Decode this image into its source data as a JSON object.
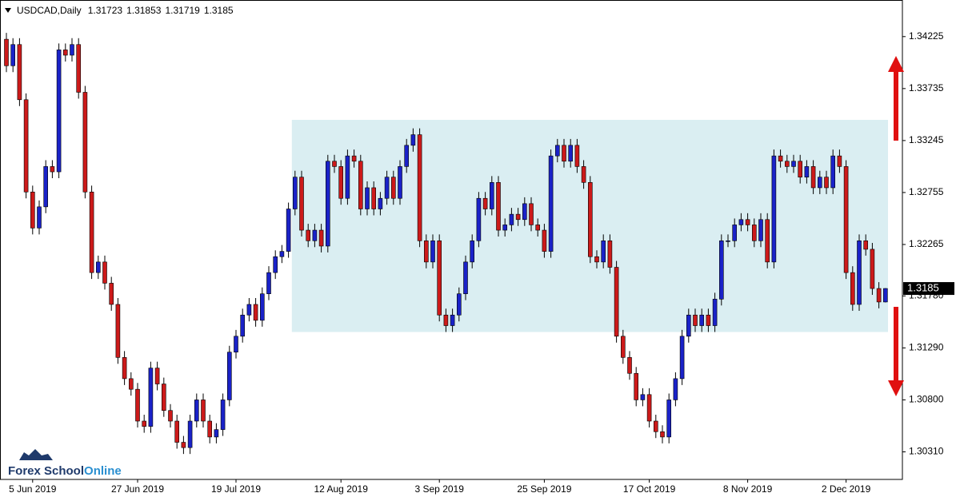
{
  "chart_data": {
    "type": "candlestick",
    "title": "USDCAD,Daily",
    "up_color": "#1a22c8",
    "down_color": "#cc1a1a",
    "zone_color": "#daeef2",
    "ylim": [
      1.3005,
      1.3457
    ],
    "yticks": [
      {
        "value": 1.3031,
        "label": "1.30310"
      },
      {
        "value": 1.308,
        "label": "1.30800"
      },
      {
        "value": 1.3129,
        "label": "1.31290"
      },
      {
        "value": 1.3178,
        "label": "1.31780"
      },
      1.32265,
      1.32755,
      1.33245,
      1.33735,
      1.34225
    ],
    "zone": {
      "from": 1.3144,
      "to": 1.3344,
      "start": 44
    },
    "categories": [
      null,
      null,
      null,
      null,
      "5 Jun 2019",
      null,
      null,
      null,
      null,
      null,
      null,
      null,
      null,
      null,
      null,
      null,
      null,
      null,
      null,
      null,
      "27 Jun 2019",
      null,
      null,
      null,
      null,
      null,
      null,
      null,
      null,
      null,
      null,
      null,
      null,
      null,
      null,
      "19 Jul 2019",
      null,
      null,
      null,
      null,
      null,
      null,
      null,
      null,
      null,
      null,
      null,
      null,
      null,
      null,
      null,
      "12 Aug 2019",
      null,
      null,
      null,
      null,
      null,
      null,
      null,
      null,
      null,
      null,
      null,
      null,
      null,
      null,
      "3 Sep 2019",
      null,
      null,
      null,
      null,
      null,
      null,
      null,
      null,
      null,
      null,
      null,
      null,
      null,
      null,
      null,
      "25 Sep 2019",
      null,
      null,
      null,
      null,
      null,
      null,
      null,
      null,
      null,
      null,
      null,
      null,
      null,
      null,
      null,
      "17 Oct 2019",
      null,
      null,
      null,
      null,
      null,
      null,
      null,
      null,
      null,
      null,
      null,
      null,
      null,
      null,
      "8 Nov 2019",
      null,
      null,
      null,
      null,
      null,
      null,
      null,
      null,
      null,
      null,
      null,
      null,
      null,
      null,
      "2 Dec 2019",
      null,
      null,
      null,
      null,
      null,
      null
    ],
    "ohlc": [
      [
        1.342,
        1.3426,
        1.3389,
        1.3395
      ],
      [
        1.3395,
        1.3421,
        1.3389,
        1.3415
      ],
      [
        1.3415,
        1.3421,
        1.3357,
        1.3363
      ],
      [
        1.3363,
        1.3369,
        1.327,
        1.3276
      ],
      [
        1.3276,
        1.3282,
        1.3236,
        1.3242
      ],
      [
        1.3242,
        1.3268,
        1.3236,
        1.3262
      ],
      [
        1.3262,
        1.3306,
        1.3256,
        1.33
      ],
      [
        1.33,
        1.3306,
        1.3289,
        1.3295
      ],
      [
        1.3295,
        1.3416,
        1.3289,
        1.341
      ],
      [
        1.341,
        1.3416,
        1.3399,
        1.3405
      ],
      [
        1.3405,
        1.3421,
        1.3399,
        1.3415
      ],
      [
        1.3415,
        1.3421,
        1.3364,
        1.337
      ],
      [
        1.337,
        1.3376,
        1.327,
        1.3276
      ],
      [
        1.3276,
        1.3282,
        1.3194,
        1.32
      ],
      [
        1.32,
        1.3216,
        1.3194,
        1.321
      ],
      [
        1.321,
        1.3216,
        1.3184,
        1.319
      ],
      [
        1.319,
        1.3196,
        1.3164,
        1.317
      ],
      [
        1.317,
        1.3176,
        1.3114,
        1.312
      ],
      [
        1.312,
        1.3126,
        1.3094,
        1.31
      ],
      [
        1.31,
        1.3106,
        1.3084,
        1.309
      ],
      [
        1.309,
        1.3096,
        1.3054,
        1.306
      ],
      [
        1.306,
        1.3066,
        1.3049,
        1.3055
      ],
      [
        1.3055,
        1.3116,
        1.3049,
        1.311
      ],
      [
        1.311,
        1.3116,
        1.3089,
        1.3095
      ],
      [
        1.3095,
        1.3101,
        1.3064,
        1.307
      ],
      [
        1.307,
        1.3076,
        1.3054,
        1.306
      ],
      [
        1.306,
        1.3066,
        1.3034,
        1.304
      ],
      [
        1.304,
        1.3046,
        1.3029,
        1.3035
      ],
      [
        1.3035,
        1.3066,
        1.3029,
        1.306
      ],
      [
        1.306,
        1.3086,
        1.3054,
        1.308
      ],
      [
        1.308,
        1.3086,
        1.3054,
        1.306
      ],
      [
        1.306,
        1.3066,
        1.3039,
        1.3045
      ],
      [
        1.3045,
        1.3058,
        1.3039,
        1.3052
      ],
      [
        1.3052,
        1.3086,
        1.3046,
        1.308
      ],
      [
        1.308,
        1.3131,
        1.3074,
        1.3125
      ],
      [
        1.3125,
        1.3146,
        1.3119,
        1.314
      ],
      [
        1.314,
        1.3166,
        1.3134,
        1.316
      ],
      [
        1.316,
        1.3176,
        1.3154,
        1.317
      ],
      [
        1.317,
        1.3176,
        1.3149,
        1.3155
      ],
      [
        1.3155,
        1.3186,
        1.3149,
        1.318
      ],
      [
        1.318,
        1.3206,
        1.3174,
        1.32
      ],
      [
        1.32,
        1.3221,
        1.3194,
        1.3215
      ],
      [
        1.3215,
        1.3226,
        1.3209,
        1.322
      ],
      [
        1.322,
        1.3266,
        1.3214,
        1.326
      ],
      [
        1.326,
        1.3296,
        1.3254,
        1.329
      ],
      [
        1.329,
        1.3296,
        1.3234,
        1.324
      ],
      [
        1.324,
        1.3246,
        1.3224,
        1.323
      ],
      [
        1.323,
        1.3246,
        1.3224,
        1.324
      ],
      [
        1.324,
        1.3246,
        1.3219,
        1.3225
      ],
      [
        1.3225,
        1.3311,
        1.3219,
        1.3305
      ],
      [
        1.3305,
        1.3311,
        1.3294,
        1.33
      ],
      [
        1.33,
        1.3306,
        1.3264,
        1.327
      ],
      [
        1.327,
        1.3316,
        1.3264,
        1.331
      ],
      [
        1.331,
        1.3316,
        1.3299,
        1.3305
      ],
      [
        1.3305,
        1.3311,
        1.3254,
        1.326
      ],
      [
        1.326,
        1.3286,
        1.3254,
        1.328
      ],
      [
        1.328,
        1.3286,
        1.3254,
        1.326
      ],
      [
        1.326,
        1.3276,
        1.3254,
        1.327
      ],
      [
        1.327,
        1.3296,
        1.3264,
        1.329
      ],
      [
        1.329,
        1.3296,
        1.3264,
        1.327
      ],
      [
        1.327,
        1.3306,
        1.3264,
        1.33
      ],
      [
        1.33,
        1.3326,
        1.3294,
        1.332
      ],
      [
        1.332,
        1.3336,
        1.3314,
        1.333
      ],
      [
        1.333,
        1.3336,
        1.3224,
        1.323
      ],
      [
        1.323,
        1.3236,
        1.3204,
        1.321
      ],
      [
        1.321,
        1.3236,
        1.3204,
        1.323
      ],
      [
        1.323,
        1.3236,
        1.3154,
        1.316
      ],
      [
        1.316,
        1.3166,
        1.3144,
        1.315
      ],
      [
        1.315,
        1.3166,
        1.3144,
        1.316
      ],
      [
        1.316,
        1.3186,
        1.3154,
        1.318
      ],
      [
        1.318,
        1.3216,
        1.3174,
        1.321
      ],
      [
        1.321,
        1.3236,
        1.3204,
        1.323
      ],
      [
        1.323,
        1.3276,
        1.3224,
        1.327
      ],
      [
        1.327,
        1.3276,
        1.3254,
        1.326
      ],
      [
        1.326,
        1.3291,
        1.3254,
        1.3285
      ],
      [
        1.3285,
        1.3291,
        1.3234,
        1.324
      ],
      [
        1.324,
        1.3251,
        1.3234,
        1.3245
      ],
      [
        1.3245,
        1.3261,
        1.3239,
        1.3255
      ],
      [
        1.3255,
        1.3261,
        1.3244,
        1.325
      ],
      [
        1.325,
        1.3271,
        1.3244,
        1.3265
      ],
      [
        1.3265,
        1.3271,
        1.3239,
        1.3245
      ],
      [
        1.3245,
        1.3251,
        1.3234,
        1.324
      ],
      [
        1.324,
        1.3246,
        1.3214,
        1.322
      ],
      [
        1.322,
        1.3316,
        1.3214,
        1.331
      ],
      [
        1.331,
        1.3326,
        1.3304,
        1.332
      ],
      [
        1.332,
        1.3326,
        1.3299,
        1.3305
      ],
      [
        1.3305,
        1.3326,
        1.3299,
        1.332
      ],
      [
        1.332,
        1.3326,
        1.3294,
        1.33
      ],
      [
        1.33,
        1.3306,
        1.3279,
        1.3285
      ],
      [
        1.3285,
        1.3291,
        1.3209,
        1.3215
      ],
      [
        1.3215,
        1.3221,
        1.3204,
        1.321
      ],
      [
        1.321,
        1.3236,
        1.3204,
        1.323
      ],
      [
        1.323,
        1.3236,
        1.3199,
        1.3205
      ],
      [
        1.3205,
        1.3211,
        1.3134,
        1.314
      ],
      [
        1.314,
        1.3146,
        1.3114,
        1.312
      ],
      [
        1.312,
        1.3126,
        1.3099,
        1.3105
      ],
      [
        1.3105,
        1.3111,
        1.3074,
        1.308
      ],
      [
        1.308,
        1.3091,
        1.3074,
        1.3085
      ],
      [
        1.3085,
        1.3091,
        1.3054,
        1.306
      ],
      [
        1.306,
        1.3066,
        1.3044,
        1.305
      ],
      [
        1.305,
        1.3056,
        1.3039,
        1.3045
      ],
      [
        1.3045,
        1.3086,
        1.3039,
        1.308
      ],
      [
        1.308,
        1.3106,
        1.3074,
        1.31
      ],
      [
        1.31,
        1.3146,
        1.3094,
        1.314
      ],
      [
        1.314,
        1.3166,
        1.3134,
        1.316
      ],
      [
        1.316,
        1.3166,
        1.3144,
        1.315
      ],
      [
        1.315,
        1.3166,
        1.3144,
        1.316
      ],
      [
        1.316,
        1.3166,
        1.3144,
        1.315
      ],
      [
        1.315,
        1.3181,
        1.3144,
        1.3175
      ],
      [
        1.3175,
        1.3236,
        1.3169,
        1.323
      ],
      [
        1.323,
        1.3236,
        1.3224,
        1.323
      ],
      [
        1.323,
        1.3251,
        1.3224,
        1.3245
      ],
      [
        1.3245,
        1.3256,
        1.3239,
        1.325
      ],
      [
        1.325,
        1.3256,
        1.3239,
        1.3245
      ],
      [
        1.3245,
        1.3251,
        1.3224,
        1.323
      ],
      [
        1.323,
        1.3256,
        1.3224,
        1.325
      ],
      [
        1.325,
        1.3256,
        1.3204,
        1.321
      ],
      [
        1.321,
        1.3316,
        1.3204,
        1.331
      ],
      [
        1.331,
        1.3316,
        1.3299,
        1.3305
      ],
      [
        1.3305,
        1.3311,
        1.3294,
        1.33
      ],
      [
        1.33,
        1.3311,
        1.3294,
        1.3305
      ],
      [
        1.3305,
        1.3311,
        1.3284,
        1.329
      ],
      [
        1.329,
        1.3306,
        1.3284,
        1.33
      ],
      [
        1.33,
        1.3306,
        1.3274,
        1.328
      ],
      [
        1.328,
        1.3296,
        1.3274,
        1.329
      ],
      [
        1.329,
        1.3296,
        1.3274,
        1.328
      ],
      [
        1.328,
        1.3316,
        1.3274,
        1.331
      ],
      [
        1.331,
        1.3316,
        1.3294,
        1.33
      ],
      [
        1.33,
        1.3306,
        1.3194,
        1.32
      ],
      [
        1.32,
        1.3206,
        1.3164,
        1.317
      ],
      [
        1.317,
        1.3236,
        1.3164,
        1.323
      ],
      [
        1.323,
        1.3236,
        1.3216,
        1.3222
      ],
      [
        1.3222,
        1.3228,
        1.3179,
        1.3185
      ],
      [
        1.3185,
        1.3191,
        1.31663,
        1.31723
      ],
      [
        1.31723,
        1.31853,
        1.31719,
        1.3185
      ]
    ]
  },
  "logo": {
    "first": "Forex School",
    "second": "Online"
  }
}
